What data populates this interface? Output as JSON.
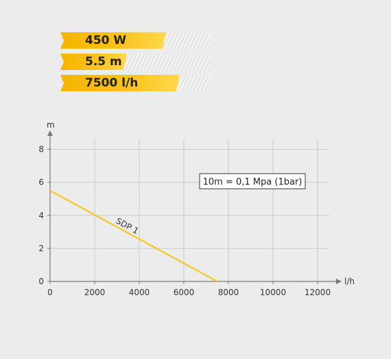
{
  "specs": [
    {
      "label": "450 W",
      "level": 0.7
    },
    {
      "label": "5.5 m",
      "level": 0.44
    },
    {
      "label": "7500 l/h",
      "level": 0.79
    }
  ],
  "colors": {
    "accent": "#f9c21c",
    "line": "#f7c61f",
    "grid": "#c8c8c8",
    "axis": "#777777"
  },
  "chart_data": {
    "type": "line",
    "xlabel": "l/h",
    "ylabel": "m",
    "xlim": [
      0,
      12000
    ],
    "ylim": [
      0,
      8
    ],
    "xticks": [
      0,
      2000,
      4000,
      6000,
      8000,
      10000,
      12000
    ],
    "yticks": [
      0,
      2,
      4,
      6,
      8
    ],
    "grid": true,
    "annotation": "10m = 0,1 Mpa (1bar)",
    "series": [
      {
        "name": "SDP 1",
        "x": [
          0,
          7500
        ],
        "y": [
          5.5,
          0
        ]
      }
    ]
  }
}
